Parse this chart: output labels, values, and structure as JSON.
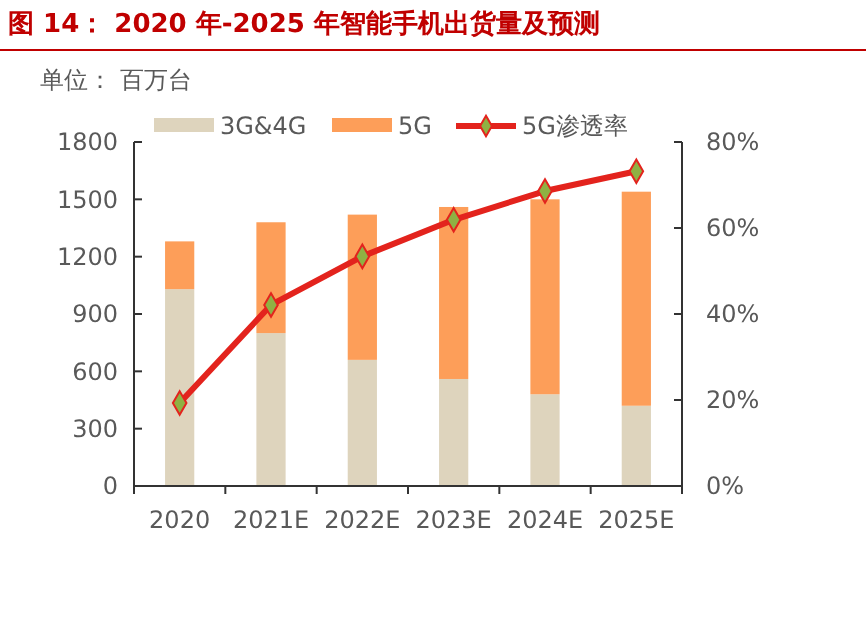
{
  "chart_data": {
    "type": "bar",
    "title": "图 14：  2020 年-2025 年智能手机出货量及预测",
    "subtitle": "单位：  百万台",
    "categories": [
      "2020",
      "2021E",
      "2022E",
      "2023E",
      "2024E",
      "2025E"
    ],
    "stacked": true,
    "legend": "top",
    "grid": false,
    "series": [
      {
        "name": "3G&4G",
        "color": "#ded4bd",
        "values": [
          1030,
          800,
          660,
          560,
          480,
          420
        ]
      },
      {
        "name": "5G",
        "color": "#fd9e59",
        "values": [
          250,
          580,
          760,
          900,
          1020,
          1120
        ]
      },
      {
        "name": "5G渗透率",
        "type": "line",
        "axis": "y2",
        "color": "#e3231d",
        "marker": "diamond",
        "values": [
          19.3,
          42.1,
          53.4,
          61.9,
          68.6,
          73.2
        ]
      }
    ],
    "ylim": [
      0,
      1800
    ],
    "yticks": [
      0,
      300,
      600,
      900,
      1200,
      1500,
      1800
    ],
    "y2lim": [
      0,
      80
    ],
    "y2ticks": [
      {
        "value": 0,
        "label": "0%"
      },
      {
        "value": 20,
        "label": "20%"
      },
      {
        "value": 40,
        "label": "40%"
      },
      {
        "value": 60,
        "label": "60%"
      },
      {
        "value": 80,
        "label": "80%"
      }
    ]
  }
}
